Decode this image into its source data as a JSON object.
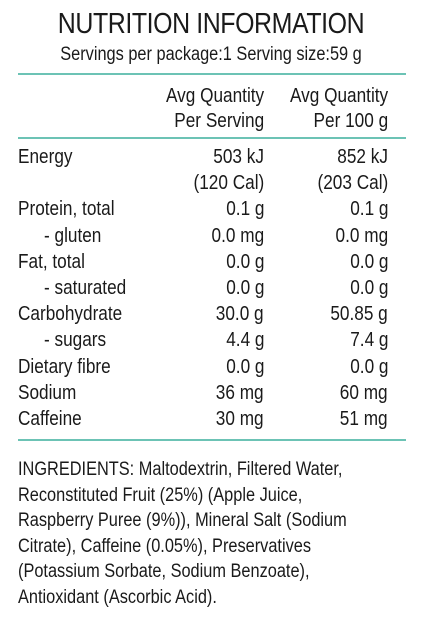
{
  "title": "NUTRITION INFORMATION",
  "serving_line": "Servings per package:1 Serving size:59 g",
  "headers": {
    "per_serving": [
      "Avg Quantity",
      "Per Serving"
    ],
    "per_100g": [
      "Avg Quantity",
      "Per 100 g"
    ]
  },
  "rows": [
    {
      "label": "Energy",
      "serving": "503 kJ",
      "per100": "852 kJ"
    },
    {
      "label": "",
      "serving": "(120 Cal)",
      "per100": "(203 Cal)"
    },
    {
      "label": "Protein, total",
      "serving": "0.1 g",
      "per100": "0.1 g"
    },
    {
      "label": "- gluten",
      "serving": "0.0 mg",
      "per100": "0.0 mg"
    },
    {
      "label": "Fat, total",
      "serving": "0.0 g",
      "per100": "0.0 g"
    },
    {
      "label": "- saturated",
      "serving": "0.0 g",
      "per100": "0.0 g"
    },
    {
      "label": "Carbohydrate",
      "serving": "30.0 g",
      "per100": "50.85 g"
    },
    {
      "label": "- sugars",
      "serving": "4.4 g",
      "per100": "7.4 g"
    },
    {
      "label": "Dietary fibre",
      "serving": "0.0 g",
      "per100": "0.0 g"
    },
    {
      "label": "Sodium",
      "serving": "36 mg",
      "per100": "60 mg"
    },
    {
      "label": "Caffeine",
      "serving": "30 mg",
      "per100": "51 mg"
    }
  ],
  "ingredients": [
    "INGREDIENTS: Maltodextrin, Filtered Water,",
    "Reconstituted Fruit (25%) (Apple Juice,",
    "Raspberry Puree (9%)), Mineral Salt (Sodium",
    "Citrate), Caffeine (0.05%), Preservatives",
    "(Potassium Sorbate, Sodium Benzoate),",
    "Antioxidant (Ascorbic Acid)."
  ],
  "colors": {
    "rule": "#6cc3b5",
    "text": "#1a1a1a"
  }
}
